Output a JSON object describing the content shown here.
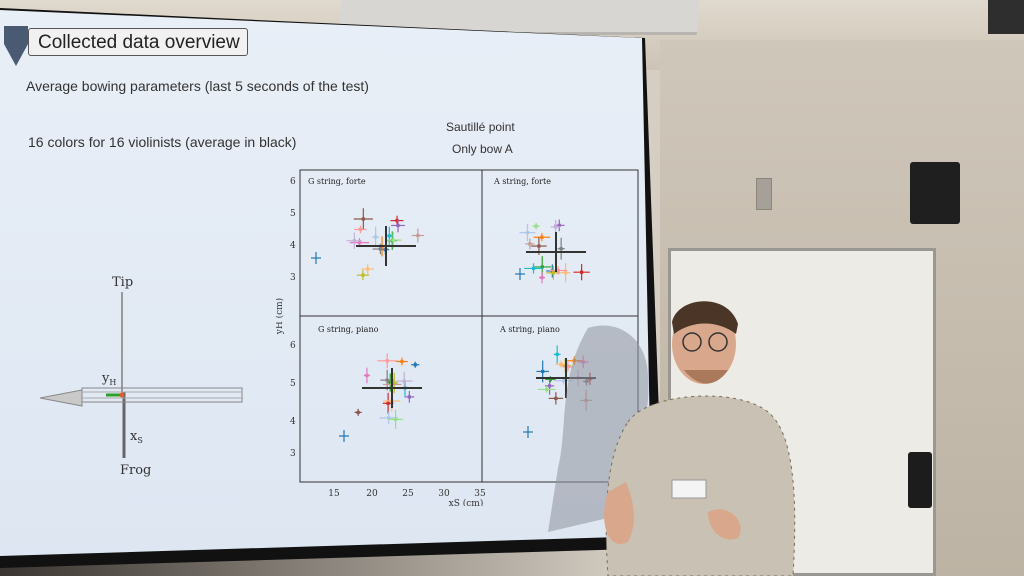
{
  "slide": {
    "title": "Collected data overview",
    "line1": "Average bowing parameters (last 5 seconds of the test)",
    "line2": "16 colors for 16 violinists (average in black)",
    "subtitle1": "Sautillé point",
    "subtitle2": "Only bow A"
  },
  "bow_diagram": {
    "tip_label": "Tip",
    "frog_label": "Frog",
    "yh_label": "y",
    "yh_sub": "H",
    "xs_label": "x",
    "xs_sub": "S"
  },
  "chart_data": {
    "type": "scatter",
    "xlabel": "xS (cm)",
    "ylabel": "yH (cm)",
    "x_ticks": [
      "15",
      "20",
      "25",
      "30",
      "35"
    ],
    "y_ticks_top": [
      "3",
      "4",
      "5",
      "6"
    ],
    "y_ticks_bottom": [
      "3",
      "4",
      "5",
      "6"
    ],
    "panels": [
      {
        "title": "G string, forte"
      },
      {
        "title": "A string, forte"
      },
      {
        "title": "G string, piano"
      },
      {
        "title": "A string, piano"
      }
    ]
  },
  "colors": {
    "screen": "#e6edf6",
    "average": "#333333",
    "violinists": [
      "#1f77b4",
      "#ff7f0e",
      "#2ca02c",
      "#d62728",
      "#9467bd",
      "#8c564b",
      "#e377c2",
      "#7f7f7f",
      "#bcbd22",
      "#17becf",
      "#aec7e8",
      "#ffbb78",
      "#98df8a",
      "#ff9896",
      "#c5b0d5",
      "#c49c94"
    ]
  }
}
